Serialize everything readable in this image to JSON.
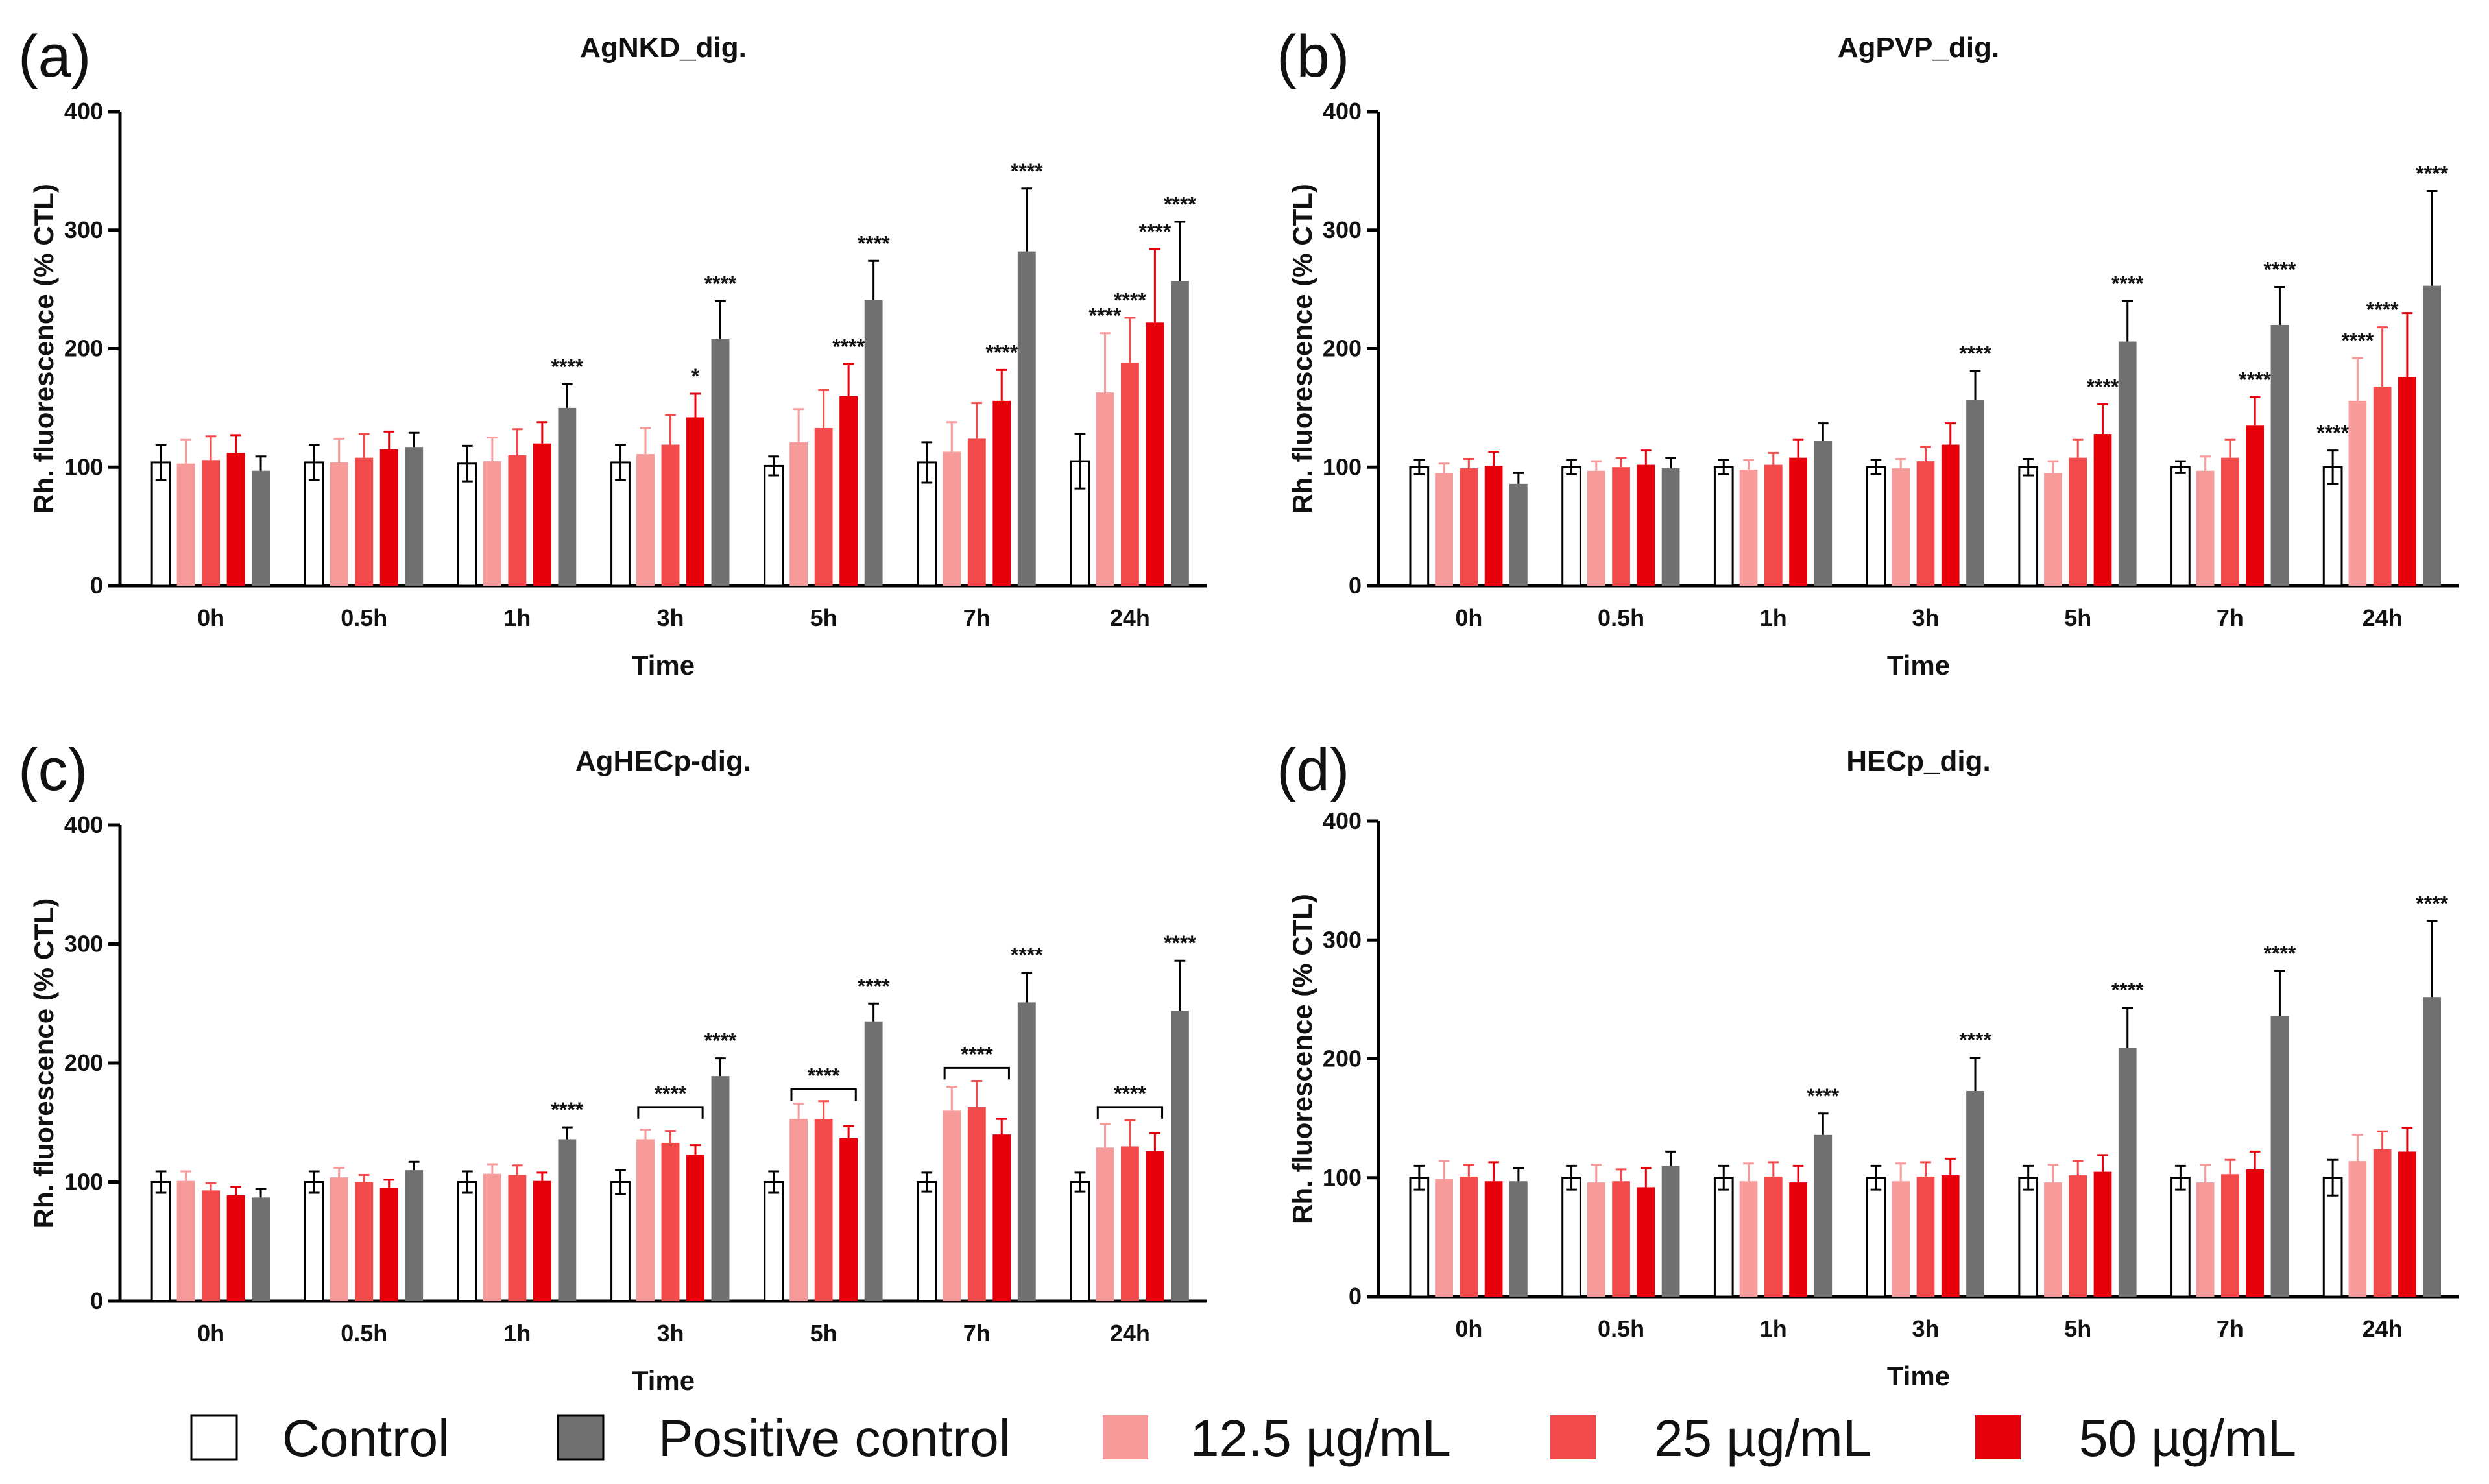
{
  "figure": {
    "legend": [
      {
        "label": "Control",
        "color": "#ffffff"
      },
      {
        "label": "Positive control",
        "color": "#707070"
      },
      {
        "label": "12.5 µg/mL",
        "color": "#f79a9a"
      },
      {
        "label": "25 µg/mL",
        "color": "#f24a4a"
      },
      {
        "label": "50 µg/mL",
        "color": "#e8000b"
      }
    ]
  },
  "chart_data": [
    {
      "panel": "(a)",
      "title": "AgNKD_dig.",
      "type": "bar",
      "xlabel": "Time",
      "ylabel": "Rh. fluorescence (% CTL)",
      "ylim": [
        0,
        400
      ],
      "yticks": [
        0,
        100,
        200,
        300,
        400
      ],
      "categories": [
        "0h",
        "0.5h",
        "1h",
        "3h",
        "5h",
        "7h",
        "24h"
      ],
      "series": [
        {
          "name": "Control",
          "values": [
            104,
            104,
            103,
            104,
            101,
            104,
            105
          ],
          "errors": [
            15,
            15,
            15,
            15,
            8,
            17,
            23
          ]
        },
        {
          "name": "12.5 µg/mL",
          "values": [
            103,
            104,
            105,
            111,
            121,
            113,
            163
          ],
          "errors": [
            20,
            20,
            20,
            22,
            28,
            25,
            50
          ]
        },
        {
          "name": "25 µg/mL",
          "values": [
            106,
            108,
            110,
            119,
            133,
            124,
            188
          ],
          "errors": [
            20,
            20,
            22,
            25,
            32,
            30,
            38
          ]
        },
        {
          "name": "50 µg/mL",
          "values": [
            112,
            115,
            120,
            142,
            160,
            156,
            222
          ],
          "errors": [
            15,
            15,
            18,
            20,
            27,
            26,
            62
          ]
        },
        {
          "name": "Positive control",
          "values": [
            97,
            117,
            150,
            208,
            241,
            282,
            257
          ],
          "errors": [
            12,
            12,
            20,
            32,
            33,
            53,
            50
          ]
        }
      ],
      "significance": [
        {
          "category": "1h",
          "series": "Positive control",
          "label": "****"
        },
        {
          "category": "3h",
          "series": "50 µg/mL",
          "label": "*"
        },
        {
          "category": "3h",
          "series": "Positive control",
          "label": "****"
        },
        {
          "category": "5h",
          "series": "50 µg/mL",
          "label": "****"
        },
        {
          "category": "5h",
          "series": "Positive control",
          "label": "****"
        },
        {
          "category": "7h",
          "series": "50 µg/mL",
          "label": "****"
        },
        {
          "category": "7h",
          "series": "Positive control",
          "label": "****"
        },
        {
          "category": "24h",
          "series": "12.5 µg/mL",
          "label": "****"
        },
        {
          "category": "24h",
          "series": "25 µg/mL",
          "label": "****"
        },
        {
          "category": "24h",
          "series": "50 µg/mL",
          "label": "****"
        },
        {
          "category": "24h",
          "series": "Positive control",
          "label": "****"
        }
      ],
      "brackets": []
    },
    {
      "panel": "(b)",
      "title": "AgPVP_dig.",
      "type": "bar",
      "xlabel": "Time",
      "ylabel": "Rh. fluorescence (% CTL)",
      "ylim": [
        0,
        400
      ],
      "yticks": [
        0,
        100,
        200,
        300,
        400
      ],
      "categories": [
        "0h",
        "0.5h",
        "1h",
        "3h",
        "5h",
        "7h",
        "24h"
      ],
      "series": [
        {
          "name": "Control",
          "values": [
            100,
            100,
            100,
            100,
            100,
            100,
            100
          ],
          "errors": [
            6,
            6,
            6,
            6,
            7,
            5,
            14
          ]
        },
        {
          "name": "12.5 µg/mL",
          "values": [
            95,
            97,
            98,
            99,
            95,
            97,
            156
          ],
          "errors": [
            8,
            8,
            8,
            8,
            10,
            12,
            36
          ]
        },
        {
          "name": "25 µg/mL",
          "values": [
            99,
            100,
            102,
            105,
            108,
            108,
            168
          ],
          "errors": [
            8,
            8,
            10,
            12,
            15,
            15,
            50
          ]
        },
        {
          "name": "50 µg/mL",
          "values": [
            101,
            102,
            108,
            119,
            128,
            135,
            176
          ],
          "errors": [
            12,
            12,
            15,
            18,
            25,
            24,
            54
          ]
        },
        {
          "name": "Positive control",
          "values": [
            86,
            99,
            122,
            157,
            206,
            220,
            253
          ],
          "errors": [
            9,
            9,
            15,
            24,
            34,
            32,
            80
          ]
        }
      ],
      "significance": [
        {
          "category": "3h",
          "series": "Positive control",
          "label": "****"
        },
        {
          "category": "5h",
          "series": "50 µg/mL",
          "label": "****"
        },
        {
          "category": "5h",
          "series": "Positive control",
          "label": "****"
        },
        {
          "category": "7h",
          "series": "50 µg/mL",
          "label": "****"
        },
        {
          "category": "7h",
          "series": "Positive control",
          "label": "****"
        },
        {
          "category": "24h",
          "series": "Control",
          "label": "****"
        },
        {
          "category": "24h",
          "series": "12.5 µg/mL",
          "label": "****"
        },
        {
          "category": "24h",
          "series": "25 µg/mL",
          "label": "****"
        },
        {
          "category": "24h",
          "series": "Positive control",
          "label": "****"
        }
      ],
      "brackets": []
    },
    {
      "panel": "(c)",
      "title": "AgHECp-dig.",
      "type": "bar",
      "xlabel": "Time",
      "ylabel": "Rh. fluorescence (% CTL)",
      "ylim": [
        0,
        400
      ],
      "yticks": [
        0,
        100,
        200,
        300,
        400
      ],
      "categories": [
        "0h",
        "0.5h",
        "1h",
        "3h",
        "5h",
        "7h",
        "24h"
      ],
      "series": [
        {
          "name": "Control",
          "values": [
            100,
            100,
            100,
            100,
            100,
            100,
            100
          ],
          "errors": [
            9,
            9,
            9,
            10,
            9,
            8,
            8
          ]
        },
        {
          "name": "12.5 µg/mL",
          "values": [
            101,
            104,
            107,
            136,
            153,
            160,
            129
          ],
          "errors": [
            8,
            8,
            8,
            8,
            13,
            20,
            20
          ]
        },
        {
          "name": "25 µg/mL",
          "values": [
            93,
            100,
            106,
            133,
            153,
            163,
            130
          ],
          "errors": [
            6,
            6,
            8,
            10,
            15,
            22,
            22
          ]
        },
        {
          "name": "50 µg/mL",
          "values": [
            89,
            95,
            101,
            123,
            137,
            140,
            126
          ],
          "errors": [
            7,
            7,
            7,
            8,
            10,
            13,
            15
          ]
        },
        {
          "name": "Positive control",
          "values": [
            87,
            110,
            136,
            189,
            235,
            251,
            244
          ],
          "errors": [
            7,
            7,
            10,
            15,
            15,
            25,
            42
          ]
        }
      ],
      "significance": [
        {
          "category": "1h",
          "series": "Positive control",
          "label": "****"
        },
        {
          "category": "3h",
          "series": "Positive control",
          "label": "****"
        },
        {
          "category": "5h",
          "series": "Positive control",
          "label": "****"
        },
        {
          "category": "7h",
          "series": "Positive control",
          "label": "****"
        },
        {
          "category": "24h",
          "series": "Positive control",
          "label": "****"
        }
      ],
      "brackets": [
        {
          "category": "3h",
          "value": 163,
          "label": "****"
        },
        {
          "category": "5h",
          "value": 178,
          "label": "****"
        },
        {
          "category": "7h",
          "value": 196,
          "label": "****"
        },
        {
          "category": "24h",
          "value": 163,
          "label": "****"
        }
      ]
    },
    {
      "panel": "(d)",
      "title": "HECp_dig.",
      "type": "bar",
      "xlabel": "Time",
      "ylabel": "Rh. fluorescence (% CTL)",
      "ylim": [
        0,
        400
      ],
      "yticks": [
        0,
        100,
        200,
        300,
        400
      ],
      "categories": [
        "0h",
        "0.5h",
        "1h",
        "3h",
        "5h",
        "7h",
        "24h"
      ],
      "series": [
        {
          "name": "Control",
          "values": [
            100,
            100,
            100,
            100,
            100,
            100,
            100
          ],
          "errors": [
            10,
            10,
            10,
            10,
            10,
            10,
            15
          ]
        },
        {
          "name": "12.5 µg/mL",
          "values": [
            99,
            96,
            97,
            97,
            96,
            96,
            114
          ],
          "errors": [
            15,
            15,
            15,
            15,
            15,
            15,
            22
          ]
        },
        {
          "name": "25 µg/mL",
          "values": [
            101,
            97,
            101,
            101,
            102,
            103,
            124
          ],
          "errors": [
            10,
            10,
            12,
            12,
            12,
            12,
            15
          ]
        },
        {
          "name": "50 µg/mL",
          "values": [
            97,
            92,
            96,
            102,
            105,
            107,
            122
          ],
          "errors": [
            16,
            16,
            14,
            14,
            14,
            15,
            20
          ]
        },
        {
          "name": "Positive control",
          "values": [
            97,
            110,
            136,
            173,
            209,
            236,
            252
          ],
          "errors": [
            11,
            12,
            18,
            28,
            34,
            38,
            64
          ]
        }
      ],
      "significance": [
        {
          "category": "1h",
          "series": "Positive control",
          "label": "****"
        },
        {
          "category": "3h",
          "series": "Positive control",
          "label": "****"
        },
        {
          "category": "5h",
          "series": "Positive control",
          "label": "****"
        },
        {
          "category": "7h",
          "series": "Positive control",
          "label": "****"
        },
        {
          "category": "24h",
          "series": "Positive control",
          "label": "****"
        }
      ],
      "brackets": []
    }
  ]
}
